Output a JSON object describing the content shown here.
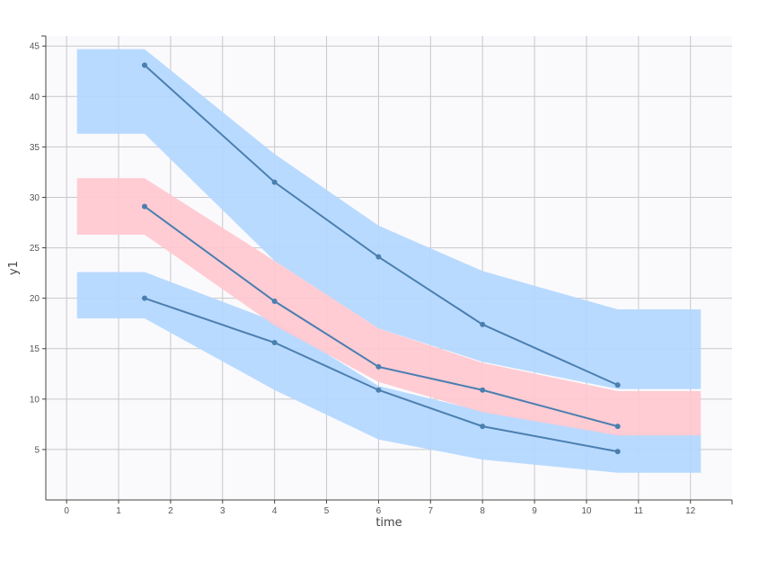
{
  "chart_data": {
    "type": "line",
    "xlabel": "time",
    "ylabel": "y1",
    "xlim": [
      -0.4,
      12.8
    ],
    "ylim": [
      0,
      46
    ],
    "xticks": [
      0,
      1,
      2,
      3,
      4,
      5,
      6,
      7,
      8,
      9,
      10,
      11,
      12
    ],
    "yticks": [
      5,
      10,
      15,
      20,
      25,
      30,
      35,
      40,
      45
    ],
    "grid": true,
    "bands": [
      {
        "color": "#b3d7ff",
        "x": [
          0.2,
          1.5,
          4.0,
          6.0,
          8.0,
          10.6,
          12.2
        ],
        "lower": [
          36.3,
          36.3,
          23.7,
          17.0,
          13.7,
          11.0,
          11.0
        ],
        "upper": [
          44.7,
          44.7,
          34.3,
          27.2,
          22.7,
          18.9,
          18.9
        ]
      },
      {
        "color": "#b3d7ff",
        "x": [
          0.2,
          1.5,
          4.0,
          6.0,
          8.0,
          10.6,
          12.2
        ],
        "lower": [
          18.0,
          18.0,
          10.9,
          6.0,
          4.0,
          2.7,
          2.7
        ],
        "upper": [
          22.6,
          22.6,
          17.7,
          11.3,
          8.8,
          6.5,
          6.5
        ]
      },
      {
        "color": "#ffc8cf",
        "x": [
          0.2,
          1.5,
          4.0,
          6.0,
          8.0,
          10.6,
          12.2
        ],
        "lower": [
          26.3,
          26.3,
          17.3,
          11.7,
          8.7,
          6.4,
          6.4
        ],
        "upper": [
          31.9,
          31.9,
          23.7,
          17.0,
          13.6,
          10.8,
          10.8
        ]
      }
    ],
    "series": [
      {
        "x": [
          1.5,
          4.0,
          6.0,
          8.0,
          10.6
        ],
        "values": [
          43.1,
          31.5,
          24.1,
          17.4,
          11.4
        ]
      },
      {
        "x": [
          1.5,
          4.0,
          6.0,
          8.0,
          10.6
        ],
        "values": [
          29.1,
          19.7,
          13.2,
          10.9,
          7.3
        ]
      },
      {
        "x": [
          1.5,
          4.0,
          6.0,
          8.0,
          10.6
        ],
        "values": [
          20.0,
          15.6,
          10.9,
          7.3,
          4.8
        ]
      }
    ],
    "colors": {
      "plot_background": "#fafafd",
      "grid": "#c8c8cc",
      "series": "#4a7fb0",
      "blue_band": "#b3d7ff",
      "red_band": "#ffc8cf"
    }
  }
}
